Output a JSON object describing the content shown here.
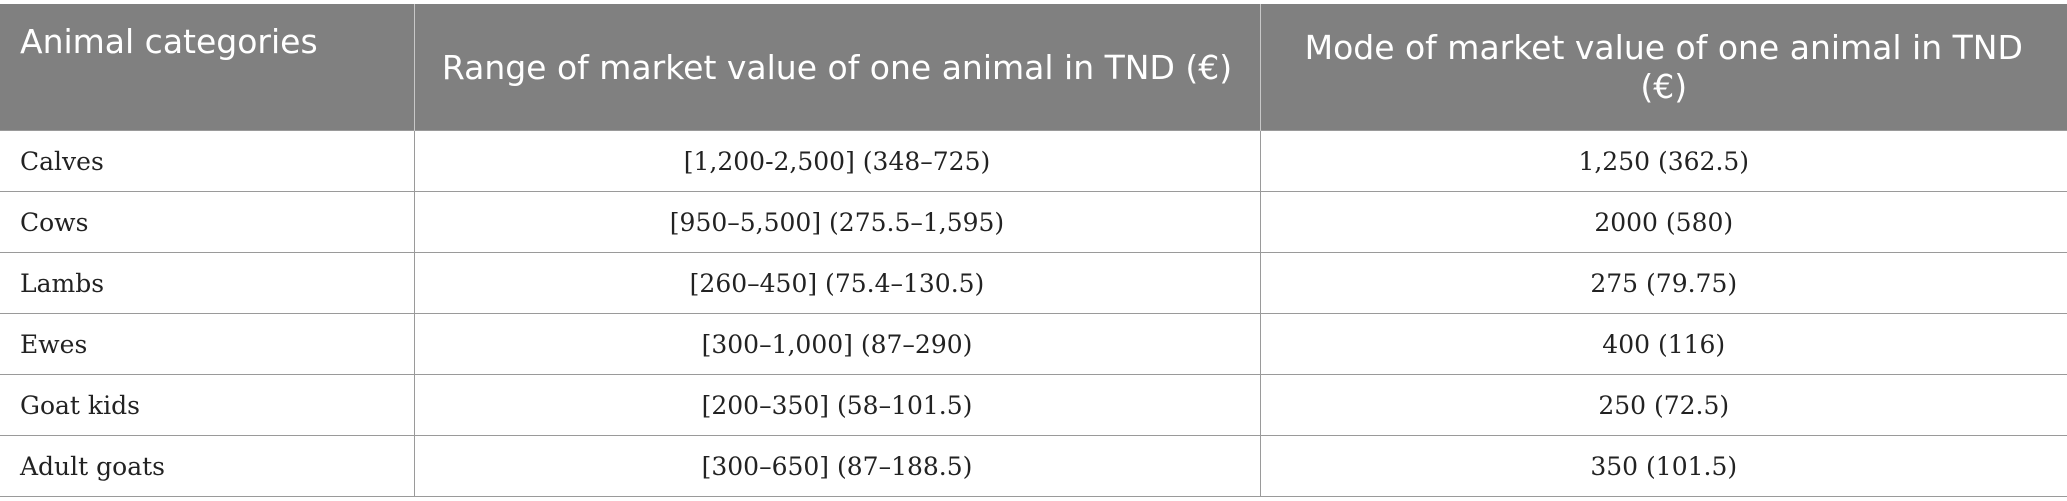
{
  "table": {
    "headers": [
      "Animal categories",
      "Range of market value of one animal in TND (€)",
      "Mode of market value of one animal in TND (€)"
    ],
    "rows": [
      {
        "category": "Calves",
        "range": "[1,200-2,500] (348–725)",
        "mode": "1,250 (362.5)"
      },
      {
        "category": "Cows",
        "range": "[950–5,500] (275.5–1,595)",
        "mode": "2000 (580)"
      },
      {
        "category": "Lambs",
        "range": "[260–450] (75.4–130.5)",
        "mode": "275 (79.75)"
      },
      {
        "category": "Ewes",
        "range": "[300–1,000] (87–290)",
        "mode": "400 (116)"
      },
      {
        "category": "Goat kids",
        "range": "[200–350] (58–101.5)",
        "mode": "250 (72.5)"
      },
      {
        "category": "Adult goats",
        "range": "[300–650] (87–188.5)",
        "mode": "350 (101.5)"
      }
    ]
  }
}
